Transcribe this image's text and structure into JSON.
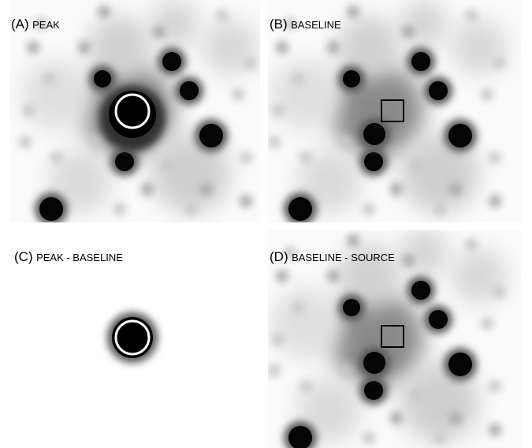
{
  "panels": [
    {
      "tag": "(A)",
      "name": "PEAK"
    },
    {
      "tag": "(B)",
      "name": "BASELINE"
    },
    {
      "tag": "(C)",
      "name": "PEAK - BASELINE"
    },
    {
      "tag": "(D)",
      "name": "BASELINE - SOURCE"
    }
  ]
}
